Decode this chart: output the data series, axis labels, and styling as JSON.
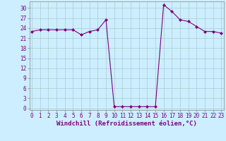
{
  "x": [
    0,
    1,
    2,
    3,
    4,
    5,
    6,
    7,
    8,
    9,
    10,
    11,
    12,
    13,
    14,
    15,
    16,
    17,
    18,
    19,
    20,
    21,
    22,
    23
  ],
  "y": [
    23,
    23.5,
    23.5,
    23.5,
    23.5,
    23.5,
    22,
    23,
    23.5,
    26.5,
    0.5,
    0.5,
    0.5,
    0.5,
    0.5,
    0.5,
    31,
    29,
    26.5,
    26,
    24.5,
    23,
    23,
    22.5
  ],
  "line_color": "#800080",
  "marker": "D",
  "marker_size": 2.0,
  "bg_color": "#cceeff",
  "grid_color": "#aacccc",
  "xlabel": "Windchill (Refroidissement éolien,°C)",
  "xlabel_fontsize": 6.5,
  "ytick_labels": [
    "0",
    "3",
    "6",
    "9",
    "12",
    "15",
    "18",
    "21",
    "24",
    "27",
    "30"
  ],
  "ytick_vals": [
    0,
    3,
    6,
    9,
    12,
    15,
    18,
    21,
    24,
    27,
    30
  ],
  "xtick_vals": [
    0,
    1,
    2,
    3,
    4,
    5,
    6,
    7,
    8,
    9,
    10,
    11,
    12,
    13,
    14,
    15,
    16,
    17,
    18,
    19,
    20,
    21,
    22,
    23
  ],
  "ylim": [
    -0.5,
    32
  ],
  "xlim": [
    -0.3,
    23.3
  ]
}
